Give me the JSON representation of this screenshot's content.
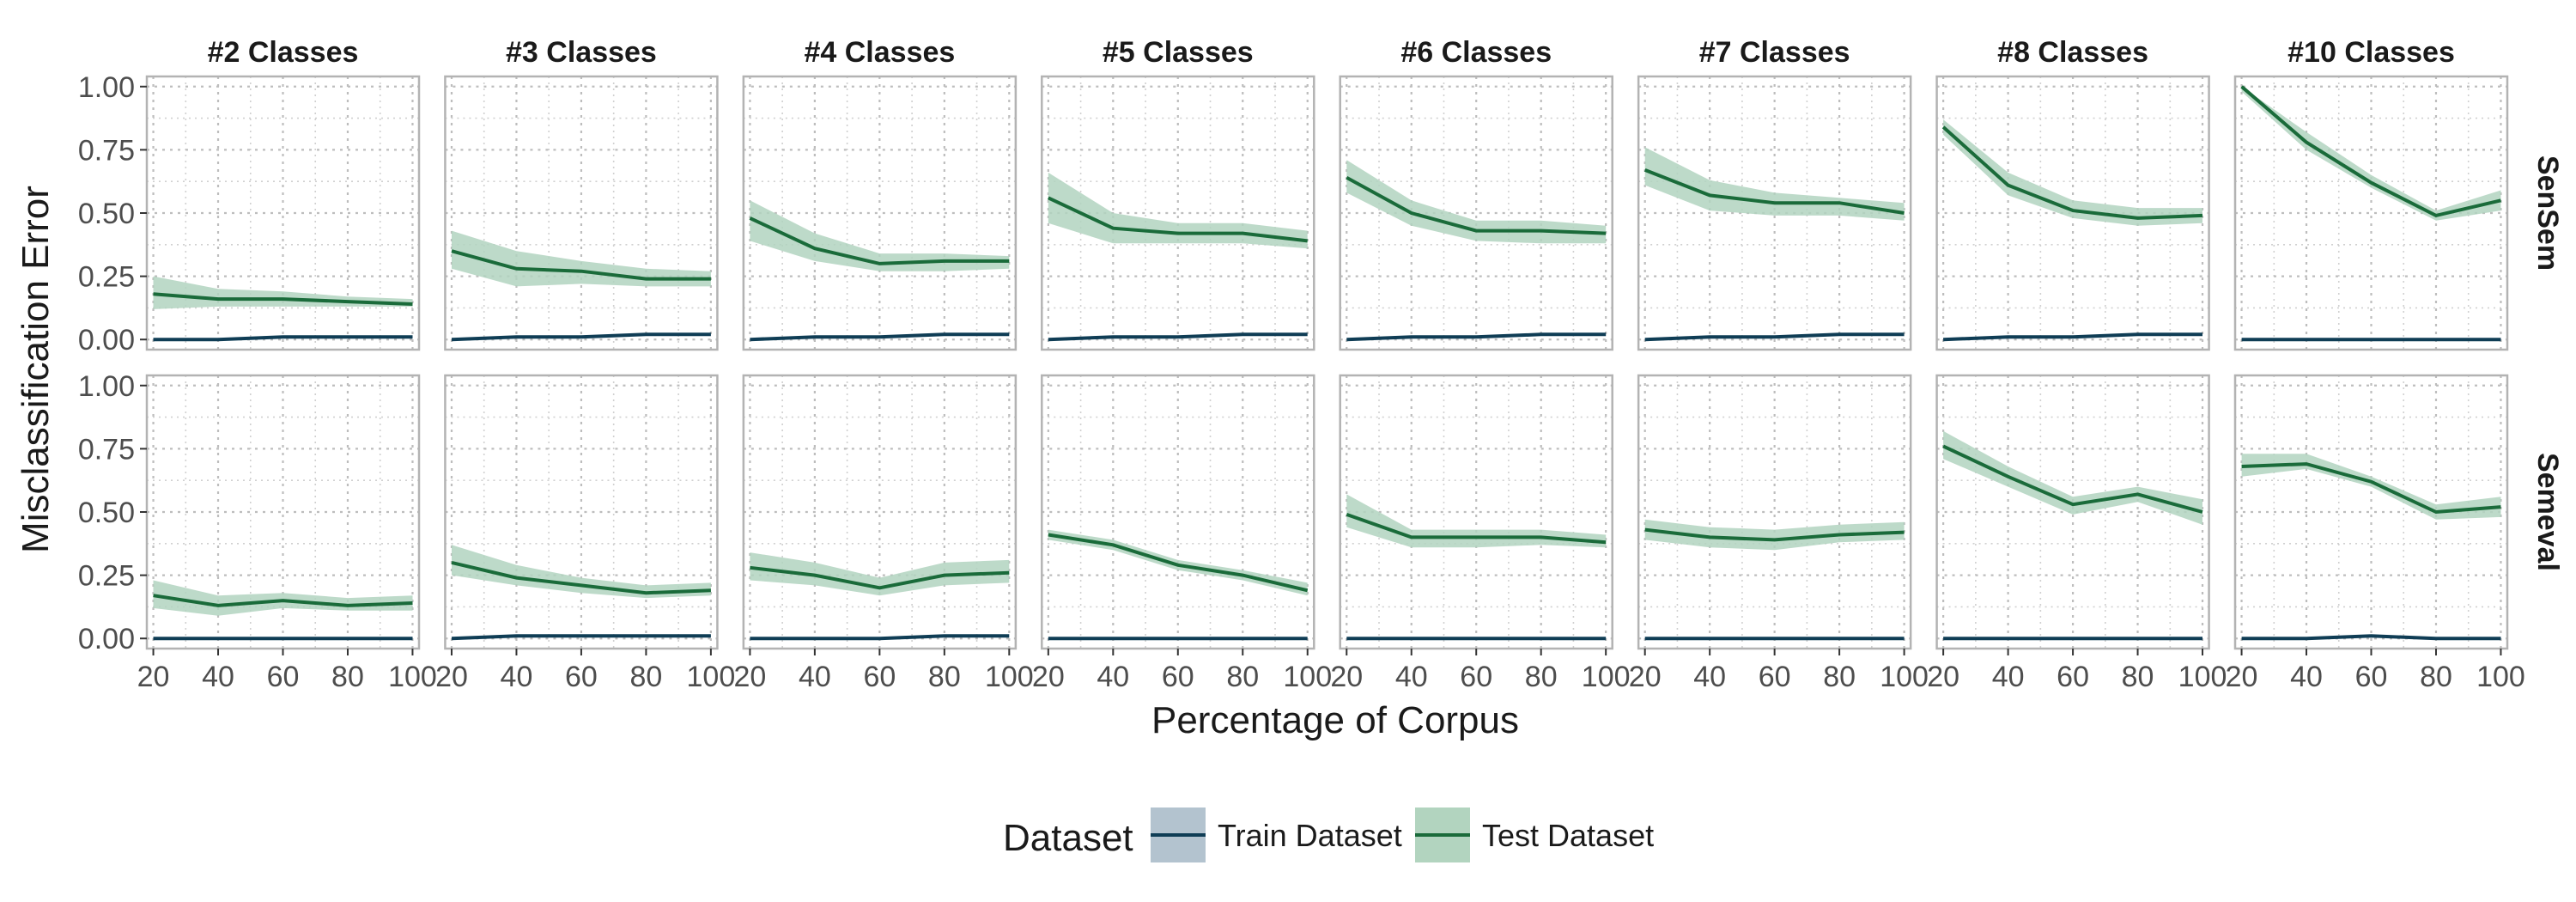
{
  "chart_data": {
    "type": "line",
    "x_label": "Percentage of Corpus",
    "y_label": "Misclassification Error",
    "x_ticks": [
      20,
      40,
      60,
      80,
      100
    ],
    "y_ticks": [
      0.0,
      0.25,
      0.5,
      0.75,
      1.0
    ],
    "y_tick_labels": [
      "0.00",
      "0.25",
      "0.50",
      "0.75",
      "1.00"
    ],
    "xlim": [
      18,
      102
    ],
    "ylim": [
      -0.04,
      1.04
    ],
    "x": [
      20,
      40,
      60,
      80,
      100
    ],
    "columns": [
      "#2 Classes",
      "#3 Classes",
      "#4 Classes",
      "#5 Classes",
      "#6 Classes",
      "#7 Classes",
      "#8 Classes",
      "#10 Classes"
    ],
    "rows": [
      "SenSem",
      "Semeval"
    ],
    "legend": {
      "title": "Dataset",
      "position": "bottom",
      "items": [
        {
          "name": "Train Dataset",
          "line": "#0f3d55",
          "fill": "#b3c3cf"
        },
        {
          "name": "Test Dataset",
          "line": "#1a6b3a",
          "fill": "#b2d4bf"
        }
      ]
    },
    "colors": {
      "train_line": "#0f3d55",
      "test_line": "#1a6b3a",
      "test_band": "#b2d4bf",
      "panel_border": "#b3b3b3",
      "grid": "#bdbdbd"
    },
    "panels": {
      "SenSem": [
        {
          "train": [
            0.0,
            0.0,
            0.01,
            0.01,
            0.01
          ],
          "test": [
            0.18,
            0.16,
            0.16,
            0.15,
            0.14
          ],
          "lower": [
            0.12,
            0.13,
            0.13,
            0.13,
            0.13
          ],
          "upper": [
            0.25,
            0.2,
            0.19,
            0.17,
            0.16
          ]
        },
        {
          "train": [
            0.0,
            0.01,
            0.01,
            0.02,
            0.02
          ],
          "test": [
            0.35,
            0.28,
            0.27,
            0.24,
            0.24
          ],
          "lower": [
            0.28,
            0.21,
            0.22,
            0.21,
            0.21
          ],
          "upper": [
            0.43,
            0.35,
            0.31,
            0.28,
            0.27
          ]
        },
        {
          "train": [
            0.0,
            0.01,
            0.01,
            0.02,
            0.02
          ],
          "test": [
            0.48,
            0.36,
            0.3,
            0.31,
            0.31
          ],
          "lower": [
            0.39,
            0.31,
            0.27,
            0.27,
            0.28
          ],
          "upper": [
            0.55,
            0.42,
            0.34,
            0.34,
            0.33
          ]
        },
        {
          "train": [
            0.0,
            0.01,
            0.01,
            0.02,
            0.02
          ],
          "test": [
            0.56,
            0.44,
            0.42,
            0.42,
            0.39
          ],
          "lower": [
            0.46,
            0.38,
            0.38,
            0.38,
            0.36
          ],
          "upper": [
            0.66,
            0.5,
            0.46,
            0.46,
            0.43
          ]
        },
        {
          "train": [
            0.0,
            0.01,
            0.01,
            0.02,
            0.02
          ],
          "test": [
            0.64,
            0.5,
            0.43,
            0.43,
            0.42
          ],
          "lower": [
            0.58,
            0.45,
            0.39,
            0.38,
            0.38
          ],
          "upper": [
            0.71,
            0.55,
            0.47,
            0.47,
            0.45
          ]
        },
        {
          "train": [
            0.0,
            0.01,
            0.01,
            0.02,
            0.02
          ],
          "test": [
            0.67,
            0.57,
            0.54,
            0.54,
            0.5
          ],
          "lower": [
            0.61,
            0.51,
            0.49,
            0.49,
            0.47
          ],
          "upper": [
            0.76,
            0.63,
            0.58,
            0.56,
            0.54
          ]
        },
        {
          "train": [
            0.0,
            0.01,
            0.01,
            0.02,
            0.02
          ],
          "test": [
            0.84,
            0.61,
            0.51,
            0.48,
            0.49
          ],
          "lower": [
            0.81,
            0.57,
            0.48,
            0.45,
            0.46
          ],
          "upper": [
            0.87,
            0.66,
            0.55,
            0.52,
            0.52
          ]
        },
        {
          "train": [
            0.0,
            0.0,
            0.0,
            0.0,
            0.0
          ],
          "test": [
            1.0,
            0.78,
            0.62,
            0.49,
            0.55
          ],
          "lower": [
            0.98,
            0.75,
            0.6,
            0.47,
            0.51
          ],
          "upper": [
            1.0,
            0.82,
            0.65,
            0.51,
            0.59
          ]
        }
      ],
      "Semeval": [
        {
          "train": [
            0.0,
            0.0,
            0.0,
            0.0,
            0.0
          ],
          "test": [
            0.17,
            0.13,
            0.15,
            0.13,
            0.14
          ],
          "lower": [
            0.12,
            0.09,
            0.12,
            0.11,
            0.11
          ],
          "upper": [
            0.23,
            0.17,
            0.18,
            0.16,
            0.17
          ]
        },
        {
          "train": [
            0.0,
            0.01,
            0.01,
            0.01,
            0.01
          ],
          "test": [
            0.3,
            0.24,
            0.21,
            0.18,
            0.19
          ],
          "lower": [
            0.25,
            0.21,
            0.18,
            0.16,
            0.17
          ],
          "upper": [
            0.37,
            0.29,
            0.24,
            0.21,
            0.22
          ]
        },
        {
          "train": [
            0.0,
            0.0,
            0.0,
            0.01,
            0.01
          ],
          "test": [
            0.28,
            0.25,
            0.2,
            0.25,
            0.26
          ],
          "lower": [
            0.23,
            0.21,
            0.17,
            0.21,
            0.22
          ],
          "upper": [
            0.34,
            0.3,
            0.24,
            0.3,
            0.31
          ]
        },
        {
          "train": [
            0.0,
            0.0,
            0.0,
            0.0,
            0.0
          ],
          "test": [
            0.41,
            0.37,
            0.29,
            0.25,
            0.19
          ],
          "lower": [
            0.39,
            0.35,
            0.27,
            0.23,
            0.17
          ],
          "upper": [
            0.43,
            0.39,
            0.31,
            0.27,
            0.22
          ]
        },
        {
          "train": [
            0.0,
            0.0,
            0.0,
            0.0,
            0.0
          ],
          "test": [
            0.49,
            0.4,
            0.4,
            0.4,
            0.38
          ],
          "lower": [
            0.44,
            0.36,
            0.36,
            0.37,
            0.36
          ],
          "upper": [
            0.57,
            0.43,
            0.43,
            0.43,
            0.41
          ]
        },
        {
          "train": [
            0.0,
            0.0,
            0.0,
            0.0,
            0.0
          ],
          "test": [
            0.43,
            0.4,
            0.39,
            0.41,
            0.42
          ],
          "lower": [
            0.39,
            0.36,
            0.35,
            0.38,
            0.39
          ],
          "upper": [
            0.47,
            0.44,
            0.43,
            0.45,
            0.46
          ]
        },
        {
          "train": [
            0.0,
            0.0,
            0.0,
            0.0,
            0.0
          ],
          "test": [
            0.76,
            0.64,
            0.53,
            0.57,
            0.5
          ],
          "lower": [
            0.71,
            0.6,
            0.49,
            0.54,
            0.45
          ],
          "upper": [
            0.82,
            0.68,
            0.56,
            0.6,
            0.55
          ]
        },
        {
          "train": [
            0.0,
            0.0,
            0.01,
            0.0,
            0.0
          ],
          "test": [
            0.68,
            0.69,
            0.62,
            0.5,
            0.52
          ],
          "lower": [
            0.64,
            0.67,
            0.6,
            0.47,
            0.48
          ],
          "upper": [
            0.73,
            0.73,
            0.64,
            0.53,
            0.56
          ]
        }
      ]
    }
  }
}
